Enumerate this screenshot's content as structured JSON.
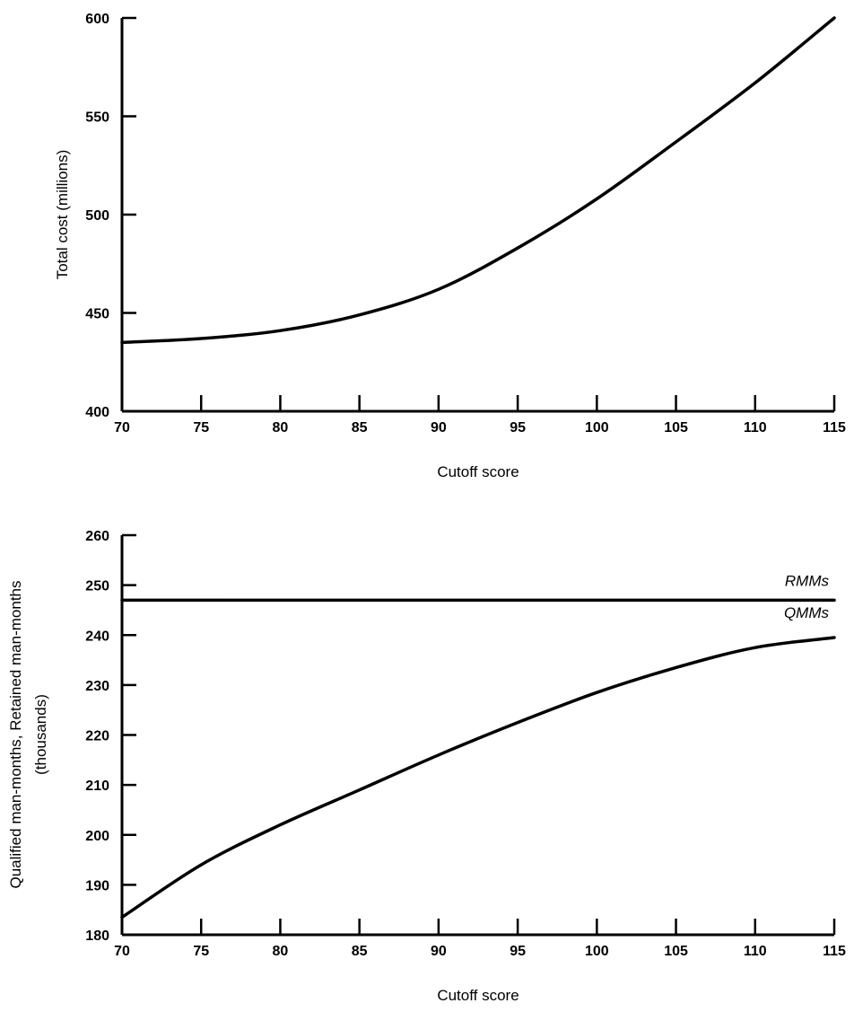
{
  "chart_data": [
    {
      "type": "line",
      "title": "",
      "xlabel": "Cutoff score",
      "ylabel": "Total cost (millions)",
      "xlim": [
        70,
        115
      ],
      "ylim": [
        400,
        600
      ],
      "xticks": [
        "70",
        "75",
        "80",
        "85",
        "90",
        "95",
        "100",
        "105",
        "110",
        "115"
      ],
      "yticks": [
        "400",
        "450",
        "500",
        "550",
        "600"
      ],
      "grid": false,
      "series": [
        {
          "x": [
            70,
            75,
            80,
            85,
            90,
            95,
            100,
            105,
            110,
            115
          ],
          "y": [
            435,
            437,
            441,
            449,
            462,
            483,
            508,
            537,
            567,
            600
          ]
        }
      ]
    },
    {
      "type": "line",
      "title": "",
      "xlabel": "Cutoff score",
      "ylabel": "Qualified man-months, Retained man-months",
      "ylabel2": "(thousands)",
      "xlim": [
        70,
        115
      ],
      "ylim": [
        180,
        260
      ],
      "xticks": [
        "70",
        "75",
        "80",
        "85",
        "90",
        "95",
        "100",
        "105",
        "110",
        "115"
      ],
      "yticks": [
        "180",
        "190",
        "200",
        "210",
        "220",
        "230",
        "240",
        "250",
        "260"
      ],
      "grid": false,
      "series": [
        {
          "name": "RMMs",
          "x": [
            70,
            115
          ],
          "y": [
            247,
            247
          ]
        },
        {
          "name": "QMMs",
          "x": [
            70,
            75,
            80,
            85,
            90,
            95,
            100,
            105,
            110,
            115
          ],
          "y": [
            183.5,
            194,
            202,
            209,
            216,
            222.5,
            228.5,
            233.5,
            237.5,
            239.5
          ]
        }
      ]
    }
  ]
}
